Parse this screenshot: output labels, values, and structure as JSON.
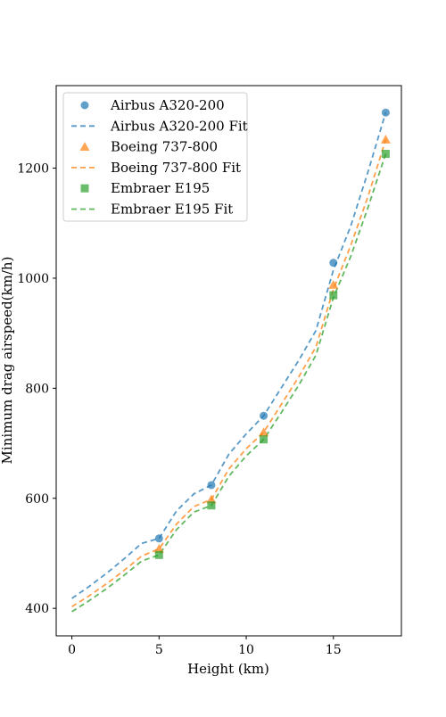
{
  "chart_data": {
    "type": "scatter",
    "title": "",
    "xlabel": "Height (km)",
    "ylabel": "Minimum drag airspeed(km/h)",
    "xlim": [
      -0.9,
      18.9
    ],
    "ylim": [
      350,
      1350
    ],
    "xticks": [
      0,
      5,
      10,
      15
    ],
    "yticks": [
      400,
      600,
      800,
      1000,
      1200
    ],
    "grid": false,
    "legend_position": "top-left",
    "x": [
      5,
      8,
      11,
      15,
      18
    ],
    "series": [
      {
        "name": "Airbus A320-200",
        "fit_name": "Airbus A320-200 Fit",
        "marker": "circle",
        "color": "#1f77b4",
        "values": [
          527,
          624,
          750,
          1028,
          1301
        ],
        "fit": {
          "x": [
            0,
            1,
            2,
            3,
            4,
            5,
            6,
            7,
            8,
            9,
            10,
            11,
            12,
            13,
            14,
            15,
            16,
            17,
            18
          ],
          "y": [
            418,
            440,
            464,
            490,
            518,
            527,
            577,
            608,
            624,
            680,
            717,
            750,
            800,
            850,
            905,
            1015,
            1095,
            1195,
            1301
          ]
        }
      },
      {
        "name": "Boeing 737-800",
        "fit_name": "Boeing 737-800 Fit",
        "marker": "triangle",
        "color": "#ff7f0e",
        "values": [
          508,
          598,
          720,
          988,
          1252
        ],
        "fit": {
          "x": [
            0,
            1,
            2,
            3,
            4,
            5,
            6,
            7,
            8,
            9,
            10,
            11,
            12,
            13,
            14,
            15,
            16,
            17,
            18
          ],
          "y": [
            403,
            423,
            445,
            469,
            495,
            508,
            553,
            585,
            598,
            653,
            690,
            720,
            770,
            820,
            875,
            980,
            1060,
            1150,
            1252
          ]
        }
      },
      {
        "name": "Embraer E195",
        "fit_name": "Embraer E195 Fit",
        "marker": "square",
        "color": "#2ca02c",
        "values": [
          497,
          587,
          707,
          969,
          1226
        ],
        "fit": {
          "x": [
            0,
            1,
            2,
            3,
            4,
            5,
            6,
            7,
            8,
            9,
            10,
            11,
            12,
            13,
            14,
            15,
            16,
            17,
            18
          ],
          "y": [
            394,
            414,
            436,
            460,
            486,
            497,
            543,
            575,
            587,
            640,
            677,
            707,
            755,
            805,
            860,
            965,
            1040,
            1130,
            1226
          ]
        }
      }
    ]
  }
}
